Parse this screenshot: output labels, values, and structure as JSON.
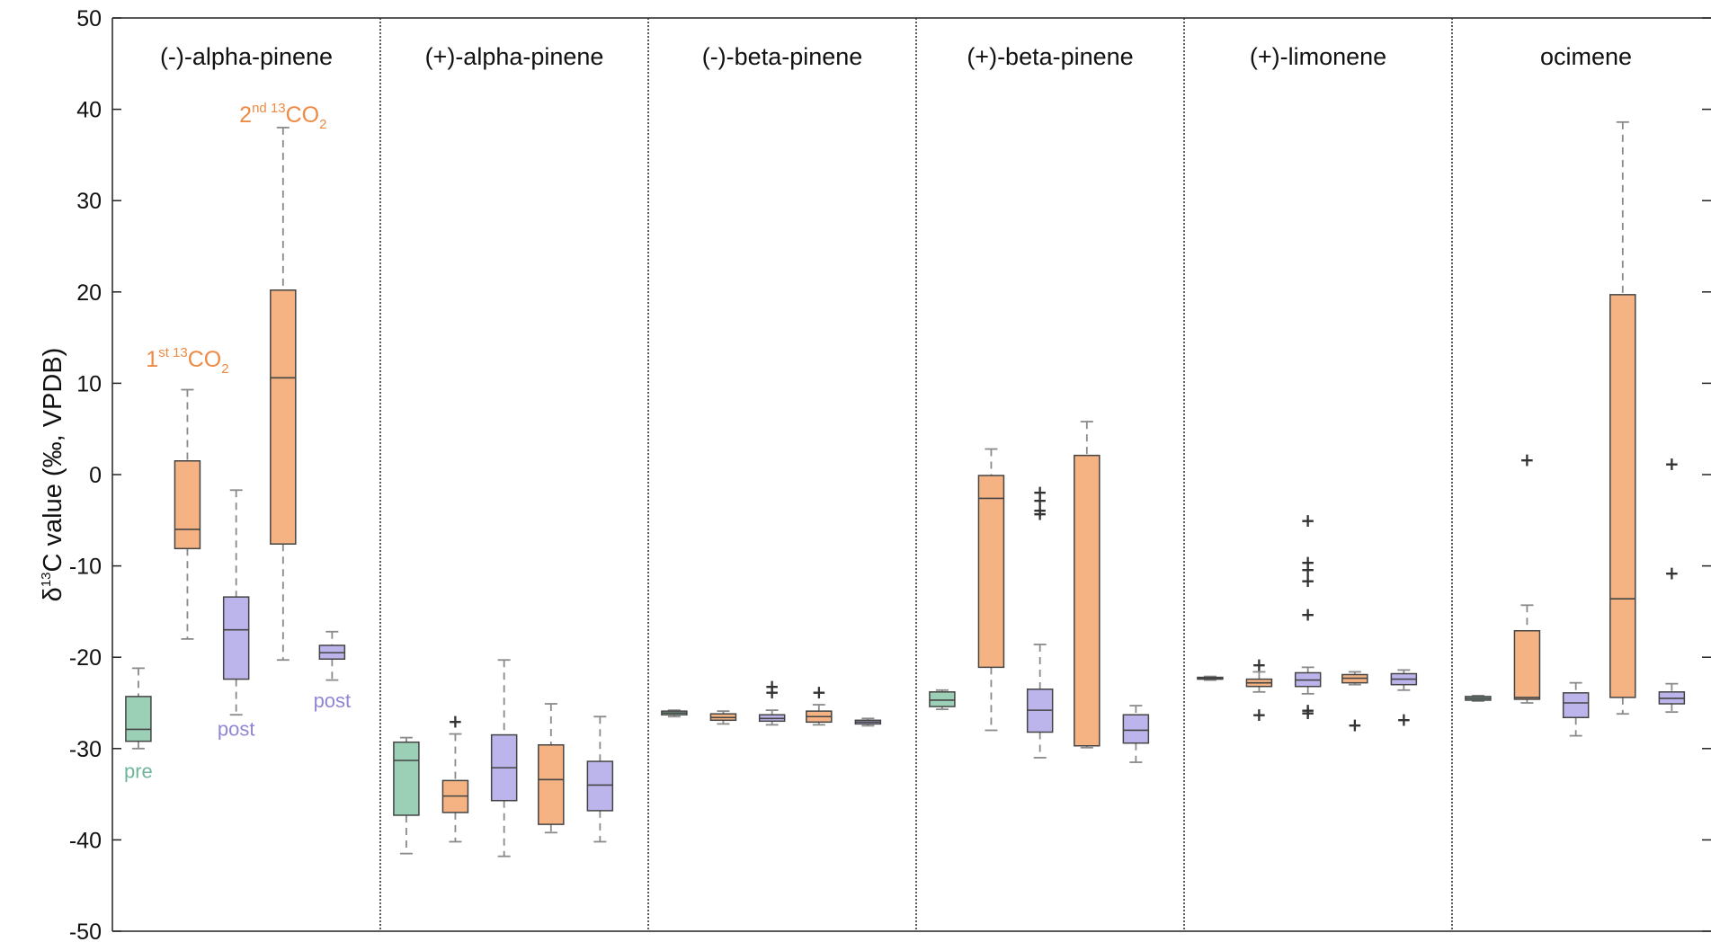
{
  "chart_data": {
    "type": "box",
    "ylabel_parts": {
      "delta": "δ",
      "sup": "13",
      "rest": "C value (‰, VPDB)"
    },
    "ylim": [
      -50,
      50
    ],
    "yticks": [
      50,
      40,
      30,
      20,
      10,
      0,
      -10,
      -20,
      -30,
      -40,
      -50
    ],
    "ytick_labels": [
      "50",
      "40",
      "30",
      "20",
      "10",
      "0",
      "-10",
      "-20",
      "-30",
      "-40",
      "-50"
    ],
    "grid": false,
    "phases": [
      "pre",
      "1st 13CO2",
      "post",
      "2nd 13CO2",
      "post"
    ],
    "colors": {
      "pre": "#6fb59a",
      "label": "#ed8a45",
      "post": "#8f86d6",
      "pre_fill": "#9cd0b6",
      "label_fill": "#f5b383",
      "post_fill": "#bcb5ec",
      "box_edge": "#444444",
      "whisker": "#8a8a8a",
      "outlier": "#333333"
    },
    "panels": [
      {
        "name": "(-)-alpha-pinene",
        "boxes": [
          {
            "phase": "pre",
            "min": -30,
            "q1": -29.2,
            "median": -27.9,
            "q3": -24.3,
            "max": -21.2,
            "outliers": []
          },
          {
            "phase": "1st 13CO2",
            "min": -18,
            "q1": -8.1,
            "median": -6,
            "q3": 1.5,
            "max": 9.3,
            "outliers": []
          },
          {
            "phase": "post",
            "min": -26.3,
            "q1": -22.4,
            "median": -17,
            "q3": -13.4,
            "max": -1.7,
            "outliers": []
          },
          {
            "phase": "2nd 13CO2",
            "min": -20.3,
            "q1": -7.6,
            "median": 10.6,
            "q3": 20.2,
            "max": 38,
            "outliers": []
          },
          {
            "phase": "post",
            "min": -22.5,
            "q1": -20.2,
            "median": -19.5,
            "q3": -18.7,
            "max": -17.2,
            "outliers": []
          }
        ]
      },
      {
        "name": "(+)-alpha-pinene",
        "boxes": [
          {
            "phase": "pre",
            "min": -41.5,
            "q1": -37.3,
            "median": -31.3,
            "q3": -29.3,
            "max": -28.8,
            "outliers": []
          },
          {
            "phase": "1st 13CO2",
            "min": -40.2,
            "q1": -37,
            "median": -35.2,
            "q3": -33.5,
            "max": -28.4,
            "outliers": [
              -27
            ]
          },
          {
            "phase": "post",
            "min": -41.8,
            "q1": -35.7,
            "median": -32.1,
            "q3": -28.5,
            "max": -20.3,
            "outliers": []
          },
          {
            "phase": "2nd 13CO2",
            "min": -39.2,
            "q1": -38.3,
            "median": -33.4,
            "q3": -29.6,
            "max": -25.1,
            "outliers": []
          },
          {
            "phase": "post",
            "min": -40.2,
            "q1": -36.8,
            "median": -34,
            "q3": -31.4,
            "max": -26.5,
            "outliers": []
          }
        ]
      },
      {
        "name": "(-)-beta-pinene",
        "boxes": [
          {
            "phase": "pre",
            "min": -26.5,
            "q1": -26.3,
            "median": -26.1,
            "q3": -25.9,
            "max": -25.8,
            "outliers": []
          },
          {
            "phase": "1st 13CO2",
            "min": -27.3,
            "q1": -26.9,
            "median": -26.6,
            "q3": -26.2,
            "max": -25.9,
            "outliers": []
          },
          {
            "phase": "post",
            "min": -27.4,
            "q1": -27,
            "median": -26.7,
            "q3": -26.3,
            "max": -25.8,
            "outliers": [
              -23.2,
              -23.8
            ]
          },
          {
            "phase": "2nd 13CO2",
            "min": -27.4,
            "q1": -27.1,
            "median": -26.5,
            "q3": -25.9,
            "max": -25.2,
            "outliers": [
              -23.8
            ]
          },
          {
            "phase": "post",
            "min": -27.5,
            "q1": -27.3,
            "median": -27.1,
            "q3": -26.9,
            "max": -26.7,
            "outliers": []
          }
        ]
      },
      {
        "name": "(+)-beta-pinene",
        "boxes": [
          {
            "phase": "pre",
            "min": -25.7,
            "q1": -25.4,
            "median": -24.7,
            "q3": -23.8,
            "max": -23.6,
            "outliers": []
          },
          {
            "phase": "1st 13CO2",
            "min": -28,
            "q1": -21.1,
            "median": -2.6,
            "q3": -0.1,
            "max": 2.8,
            "outliers": []
          },
          {
            "phase": "post",
            "min": -31,
            "q1": -28.2,
            "median": -25.8,
            "q3": -23.5,
            "max": -18.6,
            "outliers": [
              -1.9,
              -2.8,
              -3.9,
              -4.3
            ]
          },
          {
            "phase": "2nd 13CO2",
            "min": -29.9,
            "q1": -29.7,
            "median": -29.7,
            "q3": 2.1,
            "max": 5.8,
            "outliers": []
          },
          {
            "phase": "post",
            "min": -31.5,
            "q1": -29.4,
            "median": -28,
            "q3": -26.3,
            "max": -25.3,
            "outliers": []
          }
        ]
      },
      {
        "name": "(+)-limonene",
        "boxes": [
          {
            "phase": "pre",
            "min": -22.5,
            "q1": -22.4,
            "median": -22.3,
            "q3": -22.2,
            "max": -22.1,
            "outliers": []
          },
          {
            "phase": "1st 13CO2",
            "min": -23.8,
            "q1": -23.2,
            "median": -22.8,
            "q3": -22.4,
            "max": -21.6,
            "outliers": [
              -20.8,
              -26.3
            ]
          },
          {
            "phase": "post",
            "min": -24,
            "q1": -23.2,
            "median": -22.5,
            "q3": -21.7,
            "max": -21.1,
            "outliers": [
              -5,
              -9.6,
              -10.4,
              -11.6,
              -15.3,
              -25.8,
              -26.1
            ]
          },
          {
            "phase": "2nd 13CO2",
            "min": -23,
            "q1": -22.8,
            "median": -22.3,
            "q3": -21.9,
            "max": -21.6,
            "outliers": [
              -27.4
            ]
          },
          {
            "phase": "post",
            "min": -23.6,
            "q1": -23,
            "median": -22.4,
            "q3": -21.8,
            "max": -21.4,
            "outliers": [
              -26.8
            ]
          }
        ]
      },
      {
        "name": "ocimene",
        "boxes": [
          {
            "phase": "pre",
            "min": -24.8,
            "q1": -24.7,
            "median": -24.5,
            "q3": -24.3,
            "max": -24.2,
            "outliers": []
          },
          {
            "phase": "1st 13CO2",
            "min": -25,
            "q1": -24.6,
            "median": -24.4,
            "q3": -17.1,
            "max": -14.3,
            "outliers": [
              1.6
            ]
          },
          {
            "phase": "post",
            "min": -28.6,
            "q1": -26.6,
            "median": -25,
            "q3": -23.9,
            "max": -22.8,
            "outliers": []
          },
          {
            "phase": "2nd 13CO2",
            "min": -26.2,
            "q1": -24.4,
            "median": -13.6,
            "q3": 19.7,
            "max": 38.6,
            "outliers": []
          },
          {
            "phase": "post",
            "min": -26,
            "q1": -25.1,
            "median": -24.5,
            "q3": -23.8,
            "max": -22.9,
            "outliers": [
              1.2,
              -10.8
            ]
          }
        ]
      }
    ],
    "annotations": [
      {
        "text": "pre",
        "panel": 0,
        "box": 0,
        "value": -33.2,
        "color_key": "pre"
      },
      {
        "text": "post",
        "panel": 0,
        "box": 2,
        "value": -28.6,
        "color_key": "post"
      },
      {
        "text": "post",
        "panel": 0,
        "box": 4,
        "value": -25.5,
        "color_key": "post"
      },
      {
        "prefix": "1",
        "sup1": "st",
        "mid": " ",
        "sup2": "13",
        "main": "CO",
        "sub": "2",
        "panel": 0,
        "box": 1,
        "value": 11.8,
        "color_key": "label"
      },
      {
        "prefix": "2",
        "sup1": "nd",
        "mid": " ",
        "sup2": "13",
        "main": "CO",
        "sub": "2",
        "panel": 0,
        "box": 3,
        "value": 38.6,
        "color_key": "label"
      }
    ]
  }
}
